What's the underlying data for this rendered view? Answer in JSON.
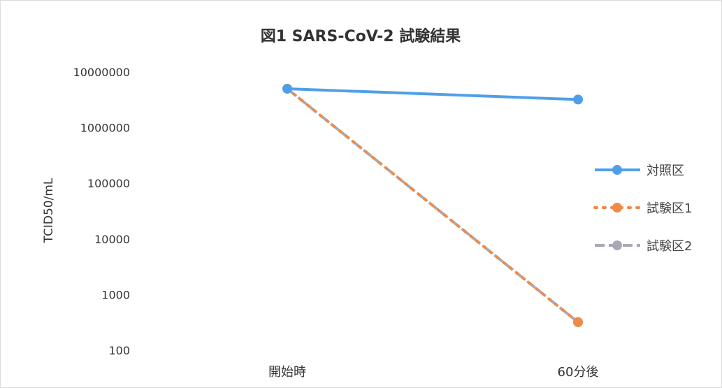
{
  "chart_data": {
    "type": "line",
    "title": "図1  SARS-CoV-2  試験結果",
    "xlabel": "",
    "ylabel": "TCID50/mL",
    "y_scale": "log",
    "ylim": [
      100,
      10000000
    ],
    "y_ticks": [
      "10000000",
      "1000000",
      "100000",
      "10000",
      "1000",
      "100"
    ],
    "categories": [
      "開始時",
      "60分後"
    ],
    "series": [
      {
        "name": "対照区",
        "values": [
          5000000,
          3200000
        ],
        "color": "#4f9fe8",
        "style": "solid"
      },
      {
        "name": "試験区1",
        "values": [
          5000000,
          320
        ],
        "color": "#f08a47",
        "style": "dotted"
      },
      {
        "name": "試験区2",
        "values": [
          5000000,
          320
        ],
        "color": "#a9a9b5",
        "style": "dashed"
      }
    ],
    "legend_position": "right",
    "grid": false
  }
}
